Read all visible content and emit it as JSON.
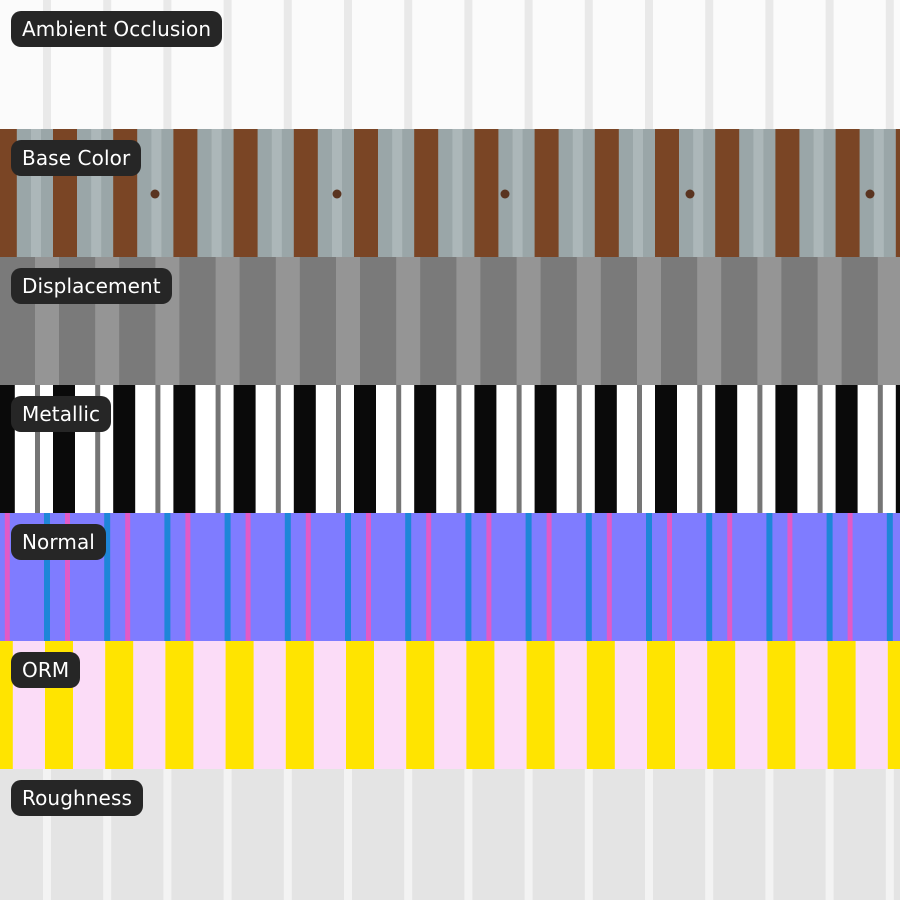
{
  "maps": [
    {
      "label": "Ambient Occlusion",
      "base": "#fbfbfb",
      "stripe": "#e9e9e9"
    },
    {
      "label": "Base Color",
      "base": "#9aa6a8",
      "stripe": "#7a4525"
    },
    {
      "label": "Displacement",
      "base": "#7a7a7a",
      "stripe": "#959595"
    },
    {
      "label": "Metallic",
      "base": "#ffffff",
      "stripe": "#0a0a0a"
    },
    {
      "label": "Normal",
      "base": "#7f7cff",
      "stripe": "#1e86d8",
      "accent": "#e25ac6"
    },
    {
      "label": "ORM",
      "base": "#fbdcf7",
      "stripe": "#ffe400"
    },
    {
      "label": "Roughness",
      "base": "#e4e4e4",
      "stripe": "#f3f3f3"
    }
  ]
}
